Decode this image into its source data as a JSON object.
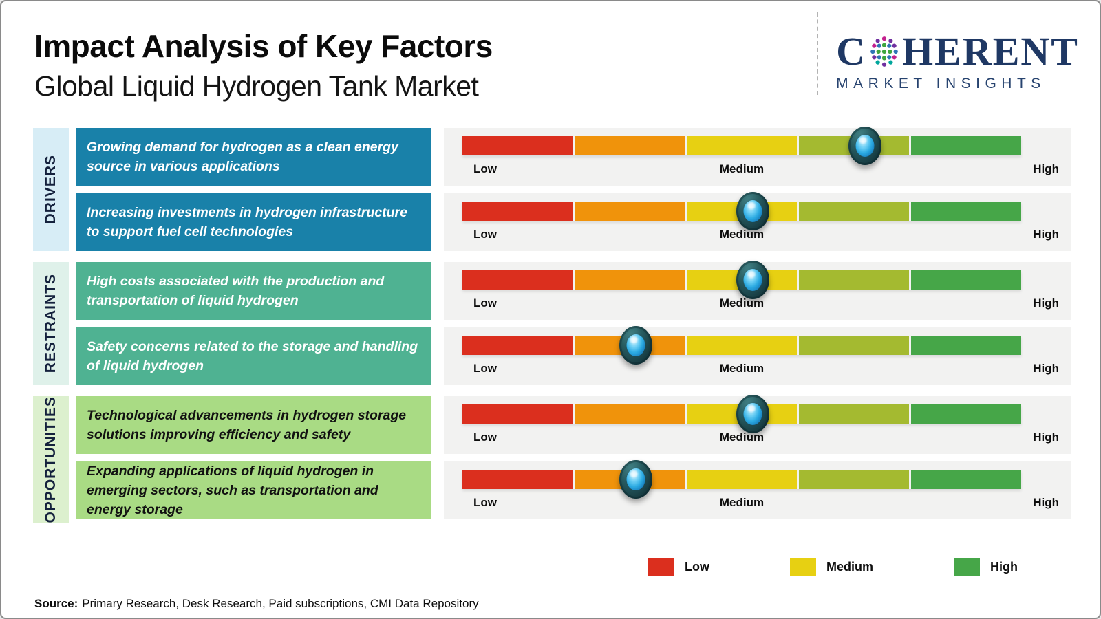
{
  "header": {
    "title": "Impact Analysis of Key Factors",
    "subtitle": "Global Liquid Hydrogen Tank Market",
    "logo": {
      "letter_c": "C",
      "letters_rest": "HERENT",
      "tagline": "MARKET INSIGHTS",
      "brand_color": "#1f3864",
      "globe_dot_colors": [
        "#3fa63f",
        "#2e75b6",
        "#c4208e",
        "#7030a0",
        "#00a69c"
      ]
    }
  },
  "chart_data": {
    "type": "scatter",
    "title": "Impact Analysis of Key Factors",
    "subtitle": "Global Liquid Hydrogen Tank Market",
    "x_scale": {
      "min": 0,
      "max": 100,
      "tick_labels": [
        "Low",
        "Medium",
        "High"
      ],
      "grid": false
    },
    "segment_colors": [
      "#db2f1e",
      "#f0930b",
      "#e7d012",
      "#a4ba30",
      "#46a648"
    ],
    "band_background": "#f2f2f1",
    "marker_style": {
      "outer": "#16393f",
      "core": "#2baae2"
    },
    "groups": [
      {
        "category": "DRIVERS",
        "strip_color": "#d7edf6",
        "box_color": "#1981a9",
        "box_text_color": "#ffffff",
        "factors": [
          {
            "label": "Growing demand for hydrogen as a clean energy source in various applications",
            "impact_pct": 72,
            "impact_level": "Medium-High"
          },
          {
            "label": "Increasing investments in hydrogen infrastructure to support fuel cell technologies",
            "impact_pct": 52,
            "impact_level": "Medium"
          }
        ]
      },
      {
        "category": "RESTRAINTS",
        "strip_color": "#dff1ea",
        "box_color": "#4fb292",
        "box_text_color": "#ffffff",
        "factors": [
          {
            "label": "High costs associated with the production and transportation of liquid hydrogen",
            "impact_pct": 52,
            "impact_level": "Medium"
          },
          {
            "label": "Safety concerns related to the storage and handling of liquid hydrogen",
            "impact_pct": 31,
            "impact_level": "Low-Medium"
          }
        ]
      },
      {
        "category": "OPPORTUNITIES",
        "strip_color": "#dcf0ce",
        "box_color": "#a9db84",
        "box_text_color": "#111111",
        "factors": [
          {
            "label": "Technological advancements in hydrogen storage solutions improving efficiency and safety",
            "impact_pct": 52,
            "impact_level": "Medium"
          },
          {
            "label": "Expanding applications of liquid hydrogen in emerging sectors, such as transportation and energy storage",
            "impact_pct": 31,
            "impact_level": "Low-Medium"
          }
        ]
      }
    ],
    "legend": [
      {
        "label": "Low",
        "color": "#db2f1e"
      },
      {
        "label": "Medium",
        "color": "#e7d012"
      },
      {
        "label": "High",
        "color": "#46a648"
      }
    ],
    "legend_position": "bottom-right"
  },
  "source": {
    "label": "Source:",
    "text": "Primary Research, Desk Research, Paid subscriptions, CMI Data Repository"
  }
}
